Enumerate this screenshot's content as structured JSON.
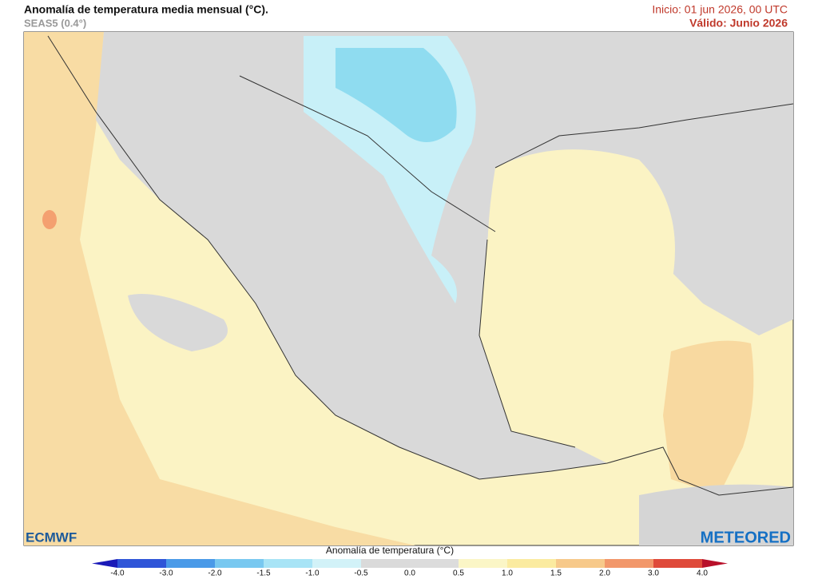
{
  "header": {
    "title": "Anomalía de temperatura media mensual (°C).",
    "subtitle": "SEAS5 (0.4°)",
    "init": "Inicio: 01 jun 2026, 00 UTC",
    "valid": "Válido: Junio 2026"
  },
  "logos": {
    "left": "ECMWF",
    "right": "METEORED"
  },
  "colorbar": {
    "label": "Anomalía de temperatura (°C)",
    "ticks": [
      "-4.0",
      "-3.0",
      "-2.0",
      "-1.5",
      "-1.0",
      "-0.5",
      "0.0",
      "0.5",
      "1.0",
      "1.5",
      "2.0",
      "3.0",
      "4.0"
    ],
    "low_color": "#1a1ab8",
    "high_color": "#b8102a",
    "colors": [
      "#2f55d8",
      "#4a9ae8",
      "#78c8f0",
      "#a8e4f6",
      "#d2f2f8",
      "#dadada",
      "#dcdcdc",
      "#fbf6c6",
      "#fbeba0",
      "#f7c98a",
      "#f2976a",
      "#df4a3a"
    ]
  }
}
